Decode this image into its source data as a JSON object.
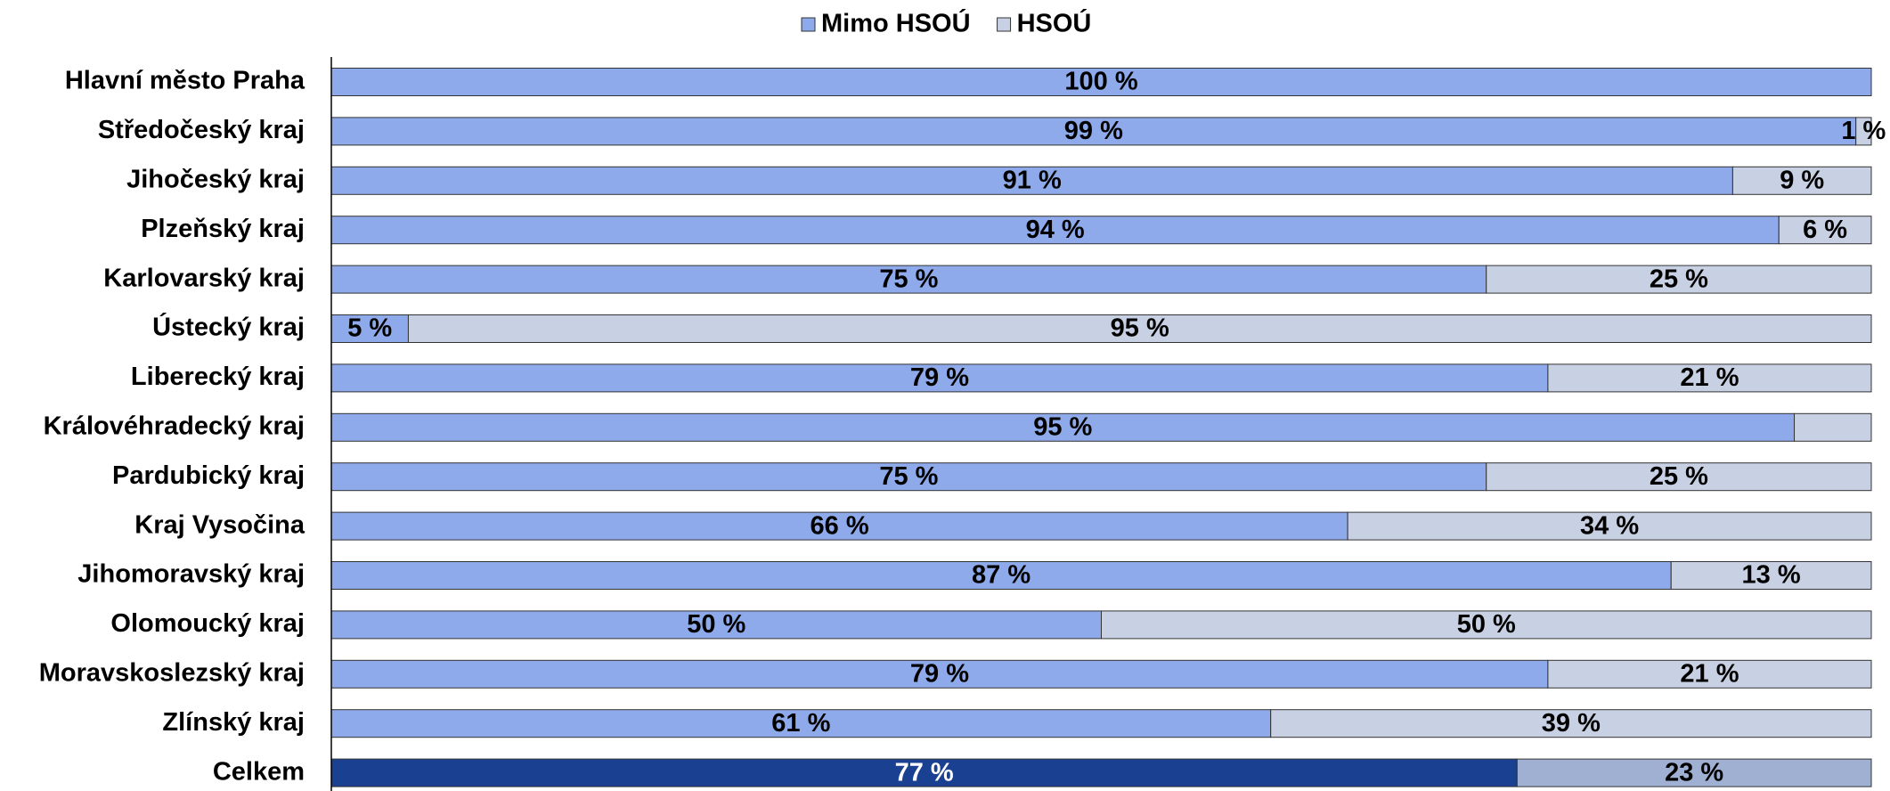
{
  "chart_data": {
    "type": "stacked-barh",
    "categories": [
      "Hlavní město Praha",
      "Středočeský kraj",
      "Jihočeský kraj",
      "Plzeňský kraj",
      "Karlovarský kraj",
      "Ústecký kraj",
      "Liberecký kraj",
      "Královéhradecký kraj",
      "Pardubický kraj",
      "Kraj Vysočina",
      "Jihomoravský kraj",
      "Olomoucký kraj",
      "Moravskoslezský kraj",
      "Zlínský kraj",
      "Celkem"
    ],
    "series": [
      {
        "name": "Mimo HSOÚ",
        "color": "#8eaaeb",
        "colors": [
          "#8eaaeb",
          "#8eaaeb",
          "#8eaaeb",
          "#8eaaeb",
          "#8eaaeb",
          "#8eaaeb",
          "#8eaaeb",
          "#8eaaeb",
          "#8eaaeb",
          "#8eaaeb",
          "#8eaaeb",
          "#8eaaeb",
          "#8eaaeb",
          "#8eaaeb",
          "#1a4092"
        ],
        "values": [
          100,
          99,
          91,
          94,
          75,
          5,
          79,
          95,
          75,
          66,
          87,
          50,
          79,
          61,
          77
        ],
        "value_labels": [
          "100 %",
          "99 %",
          "91 %",
          "94 %",
          "75 %",
          "5 %",
          "79 %",
          "95 %",
          "75 %",
          "66 %",
          "87 %",
          "50 %",
          "79 %",
          "61 %",
          "77 %"
        ]
      },
      {
        "name": "HSOÚ",
        "color": "#c8d0e4",
        "colors": [
          "#c8d0e4",
          "#c8d0e4",
          "#c8d0e4",
          "#c8d0e4",
          "#c8d0e4",
          "#c8d0e4",
          "#c8d0e4",
          "#c8d0e4",
          "#c8d0e4",
          "#c8d0e4",
          "#c8d0e4",
          "#c8d0e4",
          "#c8d0e4",
          "#c8d0e4",
          "#9fb0d2"
        ],
        "values": [
          0,
          1,
          9,
          6,
          25,
          95,
          21,
          5,
          25,
          34,
          13,
          50,
          21,
          39,
          23
        ],
        "value_labels": [
          null,
          "1 %",
          "9 %",
          "6 %",
          "25 %",
          "95 %",
          "21 %",
          null,
          "25 %",
          "34 %",
          "13 %",
          "50 %",
          "21 %",
          "39 %",
          "23 %"
        ]
      }
    ],
    "xlim": [
      0,
      100
    ],
    "legend": "top"
  }
}
